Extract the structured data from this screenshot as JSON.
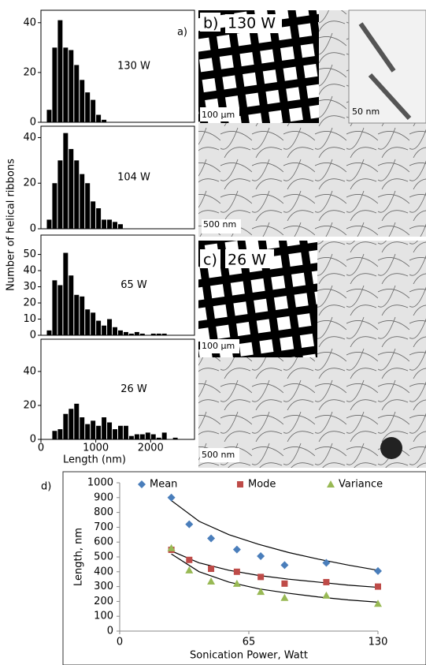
{
  "chart_data": [
    {
      "type": "histogram",
      "panel_label": "a)",
      "annotation": "130 W",
      "ylabel": "Number of helical ribbons",
      "bins": [
        0,
        100,
        200,
        300,
        400,
        500,
        600,
        700,
        800,
        900,
        1000,
        1100,
        1200,
        1300,
        1400,
        1500,
        1600,
        1700,
        1800,
        1900,
        2000,
        2100,
        2200,
        2300,
        2400,
        2500,
        2600
      ],
      "counts": [
        0,
        5,
        30,
        41,
        30,
        29,
        23,
        17,
        12,
        9,
        3,
        1,
        0,
        0,
        0,
        0,
        0,
        0,
        0,
        0,
        0,
        0,
        0,
        0,
        0,
        0
      ],
      "color": "#000000",
      "xlim": [
        0,
        2800
      ],
      "ylim": [
        0,
        45
      ],
      "yticks": [
        0,
        20,
        40
      ]
    },
    {
      "type": "histogram",
      "annotation": "104 W",
      "bins": [
        0,
        100,
        200,
        300,
        400,
        500,
        600,
        700,
        800,
        900,
        1000,
        1100,
        1200,
        1300,
        1400,
        1500,
        1600,
        1700,
        1800,
        1900,
        2000,
        2100,
        2200,
        2300,
        2400,
        2500,
        2600
      ],
      "counts": [
        0,
        4,
        20,
        30,
        42,
        35,
        30,
        24,
        20,
        12,
        9,
        4,
        4,
        3,
        2,
        0,
        0,
        0,
        0,
        0,
        0,
        0,
        0,
        0,
        0,
        0
      ],
      "color": "#000000",
      "xlim": [
        0,
        2800
      ],
      "ylim": [
        0,
        45
      ],
      "yticks": [
        0,
        20,
        40
      ]
    },
    {
      "type": "histogram",
      "annotation": "65 W",
      "bins": [
        0,
        100,
        200,
        300,
        400,
        500,
        600,
        700,
        800,
        900,
        1000,
        1100,
        1200,
        1300,
        1400,
        1500,
        1600,
        1700,
        1800,
        1900,
        2000,
        2100,
        2200,
        2300,
        2400,
        2500,
        2600
      ],
      "counts": [
        0,
        3,
        34,
        31,
        51,
        37,
        25,
        24,
        16,
        14,
        9,
        6,
        10,
        5,
        3,
        2,
        1,
        2,
        1,
        0,
        1,
        1,
        1,
        0,
        0,
        0
      ],
      "color": "#000000",
      "xlim": [
        0,
        2800
      ],
      "ylim": [
        0,
        62
      ],
      "yticks": [
        0,
        10,
        20,
        30,
        40,
        50
      ]
    },
    {
      "type": "histogram",
      "annotation": "26 W",
      "xlabel": "Length (nm)",
      "bins": [
        0,
        100,
        200,
        300,
        400,
        500,
        600,
        700,
        800,
        900,
        1000,
        1100,
        1200,
        1300,
        1400,
        1500,
        1600,
        1700,
        1800,
        1900,
        2000,
        2100,
        2200,
        2300,
        2400,
        2500,
        2600
      ],
      "counts": [
        0,
        0,
        5,
        6,
        15,
        18,
        21,
        13,
        9,
        11,
        8,
        13,
        10,
        6,
        8,
        8,
        2,
        3,
        3,
        4,
        3,
        1,
        4,
        0,
        1,
        0
      ],
      "color": "#000000",
      "xlim": [
        0,
        2800
      ],
      "ylim": [
        0,
        59
      ],
      "yticks": [
        0,
        20,
        40
      ],
      "xticks": [
        0,
        1000,
        2000
      ]
    },
    {
      "type": "scatter",
      "panel_label": "d)",
      "xlabel": "Sonication Power, Watt",
      "ylabel": "Length, nm",
      "x": [
        26,
        35,
        46,
        59,
        71,
        83,
        104,
        130
      ],
      "series": [
        {
          "name": "Mean",
          "color": "#4a7ebb",
          "marker": "diamond",
          "values": [
            900,
            720,
            625,
            550,
            505,
            445,
            460,
            405
          ]
        },
        {
          "name": "Mode",
          "color": "#be4b48",
          "marker": "square",
          "values": [
            548,
            480,
            420,
            400,
            365,
            320,
            330,
            300
          ]
        },
        {
          "name": "Variance",
          "color": "#98b954",
          "marker": "triangle",
          "values": [
            560,
            410,
            335,
            320,
            265,
            225,
            240,
            185
          ]
        }
      ],
      "trend_x": [
        26,
        40,
        55,
        70,
        85,
        100,
        115,
        130
      ],
      "trendlines": [
        {
          "color": "#000000",
          "values": [
            880,
            740,
            650,
            585,
            530,
            485,
            445,
            410
          ]
        },
        {
          "color": "#000000",
          "values": [
            540,
            460,
            410,
            375,
            350,
            330,
            310,
            295
          ]
        },
        {
          "color": "#000000",
          "values": [
            520,
            400,
            330,
            285,
            255,
            230,
            210,
            195
          ]
        }
      ],
      "xlim": [
        0,
        130
      ],
      "xticks": [
        0,
        65,
        130
      ],
      "ylim": [
        0,
        1000
      ],
      "yticks": [
        0,
        100,
        200,
        300,
        400,
        500,
        600,
        700,
        800,
        900,
        1000
      ]
    }
  ],
  "images": {
    "b": {
      "label": "b)",
      "title": "130 W",
      "inset_scale": "100 µm",
      "zoom_scale": "50 nm",
      "scale": "500 nm"
    },
    "c": {
      "label": "c)",
      "title": "26 W",
      "inset_scale": "100 µm",
      "scale": "500 nm"
    }
  }
}
